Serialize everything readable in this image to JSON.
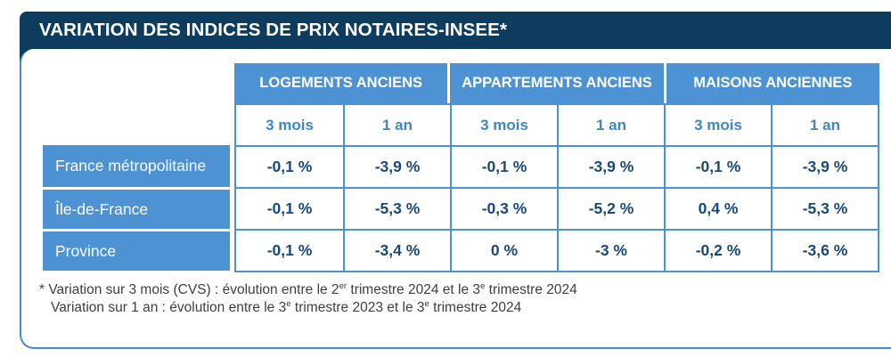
{
  "chart_data": {
    "type": "table",
    "title": "VARIATION DES INDICES DE PRIX NOTAIRES-INSEE*",
    "column_groups": [
      "LOGEMENTS ANCIENS",
      "APPARTEMENTS ANCIENS",
      "MAISONS ANCIENNES"
    ],
    "sub_columns": [
      "3 mois",
      "1 an",
      "3 mois",
      "1 an",
      "3 mois",
      "1 an"
    ],
    "rows": [
      {
        "label": "France métropolitaine",
        "values": [
          "-0,1 %",
          "-3,9 %",
          "-0,1 %",
          "-3,9 %",
          "-0,1 %",
          "-3,9 %"
        ]
      },
      {
        "label": "Île-de-France",
        "values": [
          "-0,1 %",
          "-5,3 %",
          "-0,3 %",
          "-5,2 %",
          "0,4 %",
          "-5,3 %"
        ]
      },
      {
        "label": "Province",
        "values": [
          "-0,1 %",
          "-3,4 %",
          "0 %",
          "-3 %",
          "-0,2 %",
          "-3,6 %"
        ]
      }
    ]
  },
  "footnote": {
    "line1_parts": [
      "* Variation sur 3 mois (CVS) : évolution entre le 2",
      "er",
      " trimestre 2024 et le 3",
      "e",
      " trimestre 2024"
    ],
    "line2_parts": [
      "Variation sur 1 an : évolution entre le 3",
      "e",
      " trimestre 2023 et le 3",
      "e",
      " trimestre 2024"
    ]
  },
  "colors": {
    "header_bar_navy": "#0e3c5e",
    "table_blue": "#4d92d2",
    "value_text_navy": "#17497c",
    "panel_border_blue": "#4888cc",
    "footnote_gray": "#3e3e3e"
  }
}
